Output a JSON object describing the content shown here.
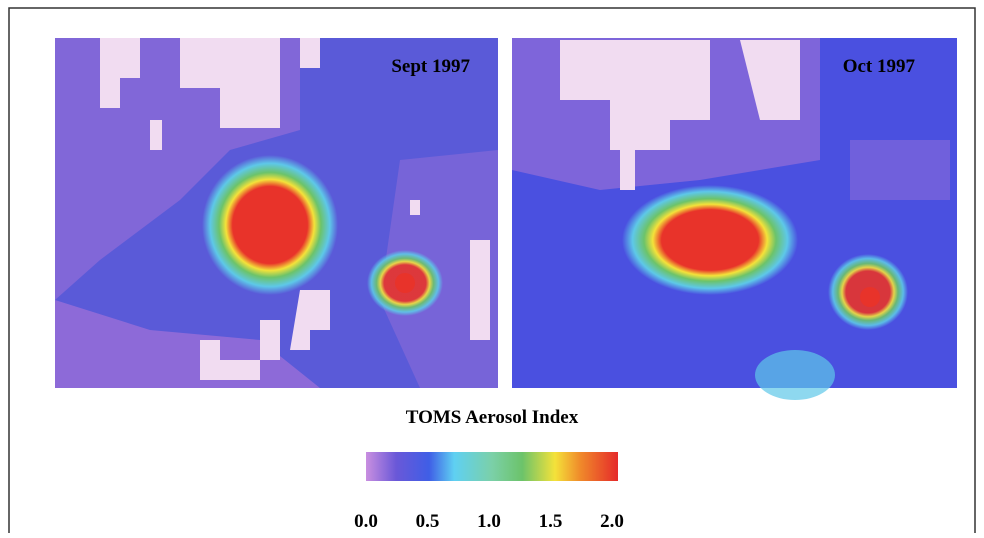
{
  "panels": [
    {
      "label": "Sept 1997"
    },
    {
      "label": "Oct 1997"
    }
  ],
  "colorbar": {
    "title": "TOMS Aerosol Index",
    "lim": [
      0,
      2
    ],
    "ticks": [
      {
        "value": 0,
        "label": "0.0"
      },
      {
        "value": 0.5,
        "label": "0.5"
      },
      {
        "value": 1,
        "label": "1.0"
      },
      {
        "value": 1.5,
        "label": "1.5"
      },
      {
        "value": 2,
        "label": "2.0"
      }
    ]
  }
}
